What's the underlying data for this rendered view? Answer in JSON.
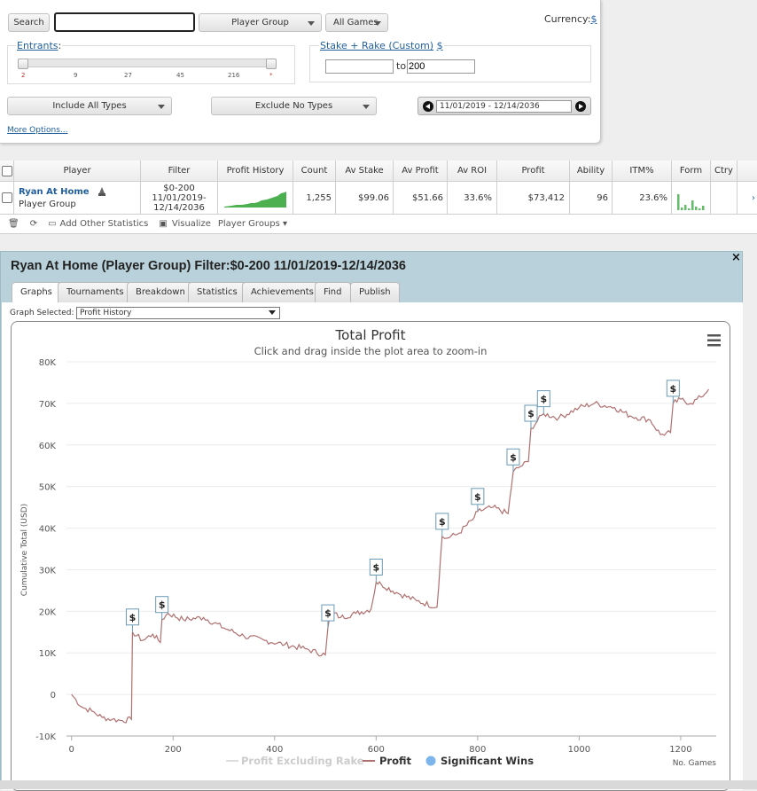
{
  "search": {
    "button": "Search",
    "input_value": "",
    "player_group_select": "Player Group",
    "games_select": "All Games",
    "currency_label": "Currency:",
    "currency_value": "$",
    "entrants_label": "Entrants",
    "entrants_colon": ":",
    "entrants_ticks": [
      "2",
      "9",
      "27",
      "45",
      "216",
      "*"
    ],
    "stake_label": "Stake + Rake (Custom)",
    "stake_currency": "$",
    "stake_from": "",
    "stake_to_label": "to",
    "stake_to": "200",
    "include_types": "Include All Types",
    "exclude_types": "Exclude No Types",
    "date_range": "11/01/2019 - 12/14/2036",
    "more_options": "More Options..."
  },
  "table": {
    "headers": [
      "Player",
      "Filter",
      "Profit History",
      "Count",
      "Av Stake",
      "Av Profit",
      "Av ROI",
      "Profit",
      "Ability",
      "ITM%",
      "Form",
      "Ctry"
    ],
    "row": {
      "player_name": "Ryan At Home",
      "player_sub": "Player Group",
      "filter_lines": [
        "$0-200",
        "11/01/2019-",
        "12/14/2036"
      ],
      "count": "1,255",
      "av_stake": "$99.06",
      "av_profit": "$51.66",
      "av_roi": "33.6%",
      "profit": "$73,412",
      "ability": "96",
      "itm": "23.6%",
      "form_bars": [
        0.9,
        0.15,
        0.3,
        0.1,
        0.55,
        0.2,
        0.1,
        0.25
      ]
    },
    "toolbar": {
      "add_stats": "Add Other Statistics",
      "visualize": "Visualize",
      "player_groups": "Player Groups"
    }
  },
  "result": {
    "title": "Ryan At Home (Player Group) Filter:$0-200 11/01/2019-12/14/2036",
    "close": "×",
    "tabs": [
      "Graphs",
      "Tournaments",
      "Breakdown",
      "Statistics",
      "Achievements",
      "Find",
      "Publish"
    ],
    "active_tab": 0,
    "graph_selected_label": "Graph Selected:",
    "graph_selected_value": "Profit History"
  },
  "chart_data": {
    "type": "line",
    "title": "Total Profit",
    "subtitle": "Click and drag inside the plot area to zoom-in",
    "xlabel": "No. Games",
    "ylabel": "Cumulative Total (USD)",
    "xlim": [
      -10,
      1270
    ],
    "ylim": [
      -10000,
      80000
    ],
    "x_ticks": [
      "0",
      "200",
      "400",
      "600",
      "800",
      "1000",
      "1200"
    ],
    "y_ticks": [
      "-10K",
      "0",
      "10K",
      "20K",
      "30K",
      "40K",
      "50K",
      "60K",
      "70K",
      "80K"
    ],
    "x_tick_values": [
      0,
      200,
      400,
      600,
      800,
      1000,
      1200
    ],
    "y_tick_values": [
      -10000,
      0,
      10000,
      20000,
      30000,
      40000,
      50000,
      60000,
      70000,
      80000
    ],
    "legend": [
      "Profit Excluding Rake",
      "Profit",
      "Significant Wins"
    ],
    "legend_position": "bottom",
    "series": [
      {
        "name": "Profit",
        "color": "#b07070",
        "x": [
          0,
          20,
          40,
          60,
          80,
          100,
          118,
          120,
          140,
          160,
          175,
          178,
          190,
          220,
          260,
          300,
          340,
          380,
          420,
          460,
          500,
          505,
          510,
          530,
          560,
          590,
          600,
          610,
          640,
          680,
          720,
          730,
          735,
          760,
          790,
          800,
          830,
          860,
          870,
          880,
          900,
          905,
          930,
          960,
          1000,
          1030,
          1070,
          1100,
          1140,
          1160,
          1180,
          1185,
          1200,
          1220,
          1240,
          1255
        ],
        "y": [
          0,
          -3000,
          -4000,
          -5500,
          -6000,
          -6300,
          -6000,
          15000,
          13000,
          14500,
          12500,
          18000,
          19500,
          18000,
          18500,
          16000,
          14000,
          13000,
          12000,
          11000,
          9500,
          16000,
          20000,
          18500,
          19500,
          20500,
          27000,
          26500,
          24500,
          22500,
          21000,
          38000,
          37500,
          38500,
          42000,
          44000,
          45000,
          43500,
          53500,
          54500,
          56000,
          64000,
          67500,
          66500,
          69000,
          70000,
          69000,
          67000,
          66000,
          62500,
          63000,
          70000,
          71000,
          70000,
          71500,
          73400
        ]
      }
    ],
    "significant_wins": [
      {
        "x": 120,
        "y": 15000
      },
      {
        "x": 178,
        "y": 18000
      },
      {
        "x": 505,
        "y": 16000
      },
      {
        "x": 600,
        "y": 27000
      },
      {
        "x": 730,
        "y": 38000
      },
      {
        "x": 800,
        "y": 44000
      },
      {
        "x": 870,
        "y": 53500
      },
      {
        "x": 905,
        "y": 64000
      },
      {
        "x": 930,
        "y": 67500
      },
      {
        "x": 1185,
        "y": 70000
      }
    ],
    "significant_win_marker": "$",
    "grid": true,
    "menu_icon": "hamburger-menu-icon"
  }
}
